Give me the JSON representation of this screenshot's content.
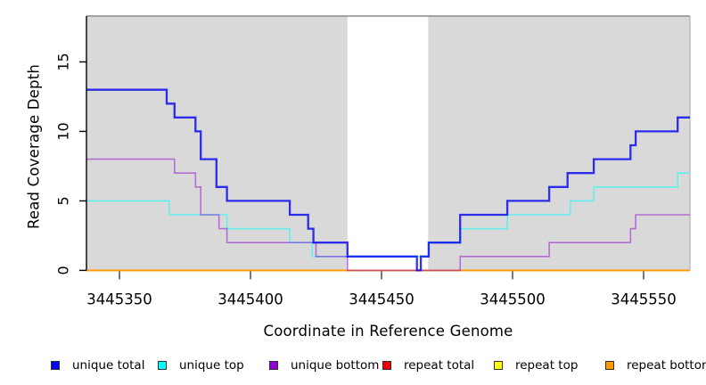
{
  "chart_data": {
    "type": "line",
    "subtype": "step-coverage",
    "xlabel": "Coordinate in Reference Genome",
    "ylabel": "Read Coverage Depth",
    "xlim": [
      3445337.4,
      3445567.7
    ],
    "ylim": [
      0,
      18.3
    ],
    "x_ticks": [
      {
        "value": 3445350,
        "label": "3445350"
      },
      {
        "value": 3445400,
        "label": "3445400"
      },
      {
        "value": 3445450,
        "label": "3445450"
      },
      {
        "value": 3445500,
        "label": "3445500"
      },
      {
        "value": 3445550,
        "label": "3445550"
      }
    ],
    "y_ticks": [
      {
        "value": 0,
        "label": "0"
      },
      {
        "value": 5,
        "label": "5"
      },
      {
        "value": 10,
        "label": "10"
      },
      {
        "value": 15,
        "label": "15"
      }
    ],
    "plot_background": "#d9d9d9",
    "gap_region": {
      "x_start": 3445437,
      "x_end": 3445467.8,
      "color": "#ffffff"
    },
    "series": [
      {
        "name": "unique_total",
        "label": "unique total",
        "color": "#0000EE",
        "alpha": 0.8,
        "width": 2.3,
        "draw_order": 5,
        "steps": [
          [
            3445337.4,
            13
          ],
          [
            3445368,
            12
          ],
          [
            3445371,
            11
          ],
          [
            3445379,
            10
          ],
          [
            3445381,
            8
          ],
          [
            3445387,
            6
          ],
          [
            3445391,
            5
          ],
          [
            3445415,
            4
          ],
          [
            3445422,
            3
          ],
          [
            3445424,
            2
          ],
          [
            3445437,
            1
          ],
          [
            3445463.5,
            0
          ],
          [
            3445465,
            1
          ],
          [
            3445468,
            2
          ],
          [
            3445480,
            4
          ],
          [
            3445498,
            5
          ],
          [
            3445514,
            6
          ],
          [
            3445521,
            7
          ],
          [
            3445531,
            8
          ],
          [
            3445545,
            9
          ],
          [
            3445547,
            10
          ],
          [
            3445563,
            11
          ]
        ],
        "x_end": 3445567.7
      },
      {
        "name": "unique_top",
        "label": "unique top",
        "color": "#00FFFF",
        "alpha": 0.55,
        "width": 1.6,
        "draw_order": 3,
        "steps": [
          [
            3445337.4,
            5
          ],
          [
            3445369,
            4
          ],
          [
            3445391,
            3
          ],
          [
            3445415,
            2
          ],
          [
            3445423.5,
            1
          ],
          [
            3445468,
            2
          ],
          [
            3445480,
            3
          ],
          [
            3445498,
            4
          ],
          [
            3445522,
            5
          ],
          [
            3445531,
            6
          ],
          [
            3445563,
            7
          ]
        ],
        "x_end": 3445567.7
      },
      {
        "name": "unique_bottom",
        "label": "unique bottom",
        "color": "#9400D3",
        "alpha": 0.5,
        "width": 1.6,
        "draw_order": 4,
        "steps": [
          [
            3445337.4,
            8
          ],
          [
            3445371,
            7
          ],
          [
            3445379,
            6
          ],
          [
            3445381,
            4
          ],
          [
            3445388,
            3
          ],
          [
            3445391,
            2
          ],
          [
            3445425,
            1
          ],
          [
            3445437,
            0
          ],
          [
            3445480,
            1
          ],
          [
            3445514,
            2
          ],
          [
            3445545,
            3
          ],
          [
            3445547,
            4
          ]
        ],
        "x_end": 3445567.7
      },
      {
        "name": "repeat_total",
        "label": "repeat total",
        "color": "#EE0000",
        "alpha": 1,
        "width": 1.6,
        "draw_order": 0,
        "steps": [
          [
            3445337.4,
            0
          ]
        ],
        "x_end": 3445567.7
      },
      {
        "name": "repeat_top",
        "label": "repeat top",
        "color": "#FFFF00",
        "alpha": 1,
        "width": 1.6,
        "draw_order": 1,
        "steps": [
          [
            3445337.4,
            0
          ]
        ],
        "x_end": 3445567.7
      },
      {
        "name": "repeat_bottom",
        "label": "repeat bottom",
        "color": "#FF9900",
        "alpha": 1,
        "width": 1.8,
        "draw_order": 2,
        "steps": [
          [
            3445337.4,
            0
          ]
        ],
        "x_end": 3445567.7
      }
    ],
    "legend_positions_x": [
      57,
      177,
      302,
      429,
      554,
      679
    ],
    "grid": false,
    "legend_position": "bottom"
  }
}
